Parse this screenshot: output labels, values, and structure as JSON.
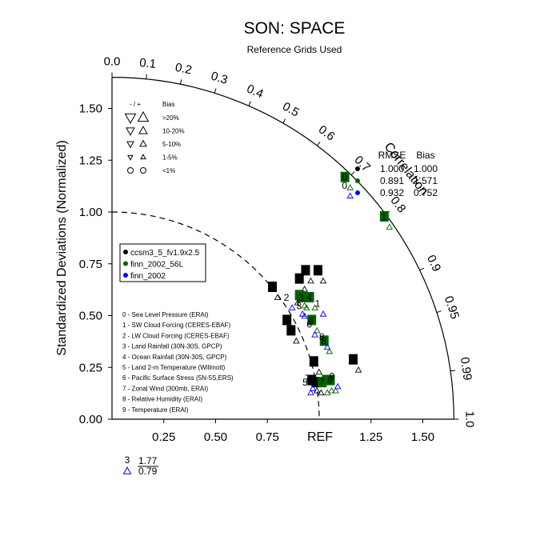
{
  "chart_data": {
    "type": "scatter",
    "title": "SON: SPACE",
    "subtitle": "Reference Grids Used",
    "ylabel": "Standardized Deviations (Normalized)",
    "ref_label": "REF",
    "corr_label": "Correlation",
    "xlim": [
      0,
      1.65
    ],
    "ylim": [
      0,
      1.65
    ],
    "x_ticks": [
      {
        "value": 0.25,
        "label": "0.25"
      },
      {
        "value": 0.5,
        "label": "0.50"
      },
      {
        "value": 0.75,
        "label": "0.75"
      },
      {
        "value": 1.25,
        "label": "1.25"
      },
      {
        "value": 1.5,
        "label": "1.50"
      }
    ],
    "y_ticks": [
      {
        "value": 0.0,
        "label": "0.00"
      },
      {
        "value": 0.25,
        "label": "0.25"
      },
      {
        "value": 0.5,
        "label": "0.50"
      },
      {
        "value": 0.75,
        "label": "0.75"
      },
      {
        "value": 1.0,
        "label": "1.00"
      },
      {
        "value": 1.25,
        "label": "1.25"
      },
      {
        "value": 1.5,
        "label": "1.50"
      }
    ],
    "corr_ticks": [
      {
        "value": 0.0,
        "label": "0.0"
      },
      {
        "value": 0.1,
        "label": "0.1"
      },
      {
        "value": 0.2,
        "label": "0.2"
      },
      {
        "value": 0.3,
        "label": "0.3"
      },
      {
        "value": 0.4,
        "label": "0.4"
      },
      {
        "value": 0.5,
        "label": "0.5"
      },
      {
        "value": 0.6,
        "label": "0.6"
      },
      {
        "value": 0.7,
        "label": "0.7"
      },
      {
        "value": 0.8,
        "label": "0.8"
      },
      {
        "value": 0.9,
        "label": "0.9"
      },
      {
        "value": 0.95,
        "label": "0.95"
      },
      {
        "value": 0.99,
        "label": "0.99"
      },
      {
        "value": 1.0,
        "label": "1.0"
      }
    ],
    "bias_legend": {
      "header_sign": "- / +",
      "header_bias": "Bias",
      "entries": [
        {
          "label": ">20%"
        },
        {
          "label": "10-20%"
        },
        {
          "label": "5-10%"
        },
        {
          "label": "1-5%"
        },
        {
          "label": "<1%"
        }
      ]
    },
    "stats_table": {
      "headers": [
        "RMSE",
        "Bias"
      ],
      "rows": [
        {
          "rmse": "1.000",
          "bias": "1.000"
        },
        {
          "rmse": "0.891",
          "bias": "1.571"
        },
        {
          "rmse": "0.932",
          "bias": "0.752"
        }
      ]
    },
    "series": [
      {
        "name": "ccsm3_5_fv1.9x2.5",
        "color": "#000000",
        "label_style": "boxed",
        "points": [
          {
            "var": 0,
            "x": 1.17,
            "y": 0.26
          },
          {
            "var": 1,
            "x": 0.78,
            "y": 0.61
          },
          {
            "var": 2,
            "x": 0.94,
            "y": 0.69
          },
          {
            "var": 3,
            "x": 0.91,
            "y": 0.65
          },
          {
            "var": 4,
            "x": 1.0,
            "y": 0.69
          },
          {
            "var": 5,
            "x": 0.97,
            "y": 0.16
          },
          {
            "var": 6,
            "x": 0.87,
            "y": 0.4
          },
          {
            "var": 7,
            "x": 0.98,
            "y": 0.25
          },
          {
            "var": 8,
            "x": 0.85,
            "y": 0.45
          },
          {
            "var": 9,
            "x": 0.99,
            "y": 0.15
          }
        ]
      },
      {
        "name": "finn_2002_56L",
        "color": "#006400",
        "label_style": "boxed",
        "points": [
          {
            "var": 0,
            "x": 1.13,
            "y": 1.14
          },
          {
            "var": 1,
            "x": 1.32,
            "y": 0.95
          },
          {
            "var": 2,
            "x": 0.91,
            "y": 0.57
          },
          {
            "var": 3,
            "x": 0.92,
            "y": 0.56
          },
          {
            "var": 4,
            "x": 0.96,
            "y": 0.56
          },
          {
            "var": 5,
            "x": 1.04,
            "y": 0.16
          },
          {
            "var": 6,
            "x": 0.97,
            "y": 0.45
          },
          {
            "var": 7,
            "x": 1.02,
            "y": 0.15
          },
          {
            "var": 8,
            "x": 1.03,
            "y": 0.35
          },
          {
            "var": 9,
            "x": 1.06,
            "y": 0.16
          }
        ]
      },
      {
        "name": "finn_2002",
        "color": "#0000ff",
        "label_style": "plain",
        "points": [
          {
            "var": 0,
            "x": 1.13,
            "y": 1.1
          },
          {
            "var": 1,
            "x": 1.0,
            "y": 0.53
          },
          {
            "var": 2,
            "x": 0.85,
            "y": 0.56
          },
          {
            "var": 3,
            "x": 0.91,
            "y": 0.52
          },
          {
            "var": 4,
            "x": 0.9,
            "y": 0.53
          },
          {
            "var": 5,
            "x": 0.94,
            "y": 0.15
          },
          {
            "var": 6,
            "x": 0.96,
            "y": 0.43
          },
          {
            "var": 7,
            "x": 0.95,
            "y": 0.17
          },
          {
            "var": 8,
            "x": 1.02,
            "y": 0.37
          },
          {
            "var": 9,
            "x": 1.07,
            "y": 0.18
          }
        ]
      }
    ],
    "variables": [
      {
        "index": 0,
        "label": "0 - Sea Level Pressure (ERAI)"
      },
      {
        "index": 1,
        "label": "1 - SW Cloud Forcing (CERES-EBAF)"
      },
      {
        "index": 2,
        "label": "2 - LW Cloud Forcing (CERES-EBAF)"
      },
      {
        "index": 3,
        "label": "3 - Land Rainfall (30N-30S, GPCP)"
      },
      {
        "index": 4,
        "label": "4 - Ocean Rainfall (30N-30S, GPCP)"
      },
      {
        "index": 5,
        "label": "5 - Land 2-m Temperature (Willmott)"
      },
      {
        "index": 6,
        "label": "6 - Pacific Surface Stress (5N-5S,ERS)"
      },
      {
        "index": 7,
        "label": "7 - Zonal Wind (300mb, ERAI)"
      },
      {
        "index": 8,
        "label": "8 - Relative Humidity (ERAI)"
      },
      {
        "index": 9,
        "label": "9 - Temperature (ERAI)"
      }
    ],
    "outlier": {
      "var": "3",
      "value": "1.77",
      "corr": "0.79",
      "color": "#0000cc"
    }
  }
}
